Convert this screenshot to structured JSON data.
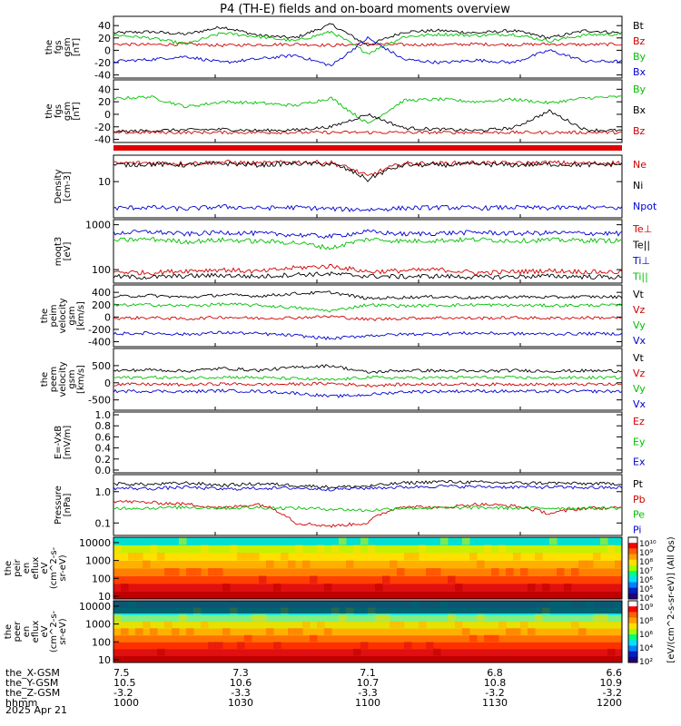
{
  "chart_data": {
    "type": "line",
    "title": "P4 (TH-E) fields and on-board moments overview",
    "panels": [
      {
        "ylabel": [
          "the",
          "fgs",
          "gsm",
          "[nT]"
        ],
        "scale": "linear",
        "ylim": [
          -45,
          55
        ],
        "yticks": [
          "40",
          "20",
          "0",
          "-20",
          "-40"
        ],
        "ytick_values": [
          40,
          20,
          0,
          -20,
          -40
        ],
        "series": [
          {
            "name": "Bt",
            "color": "#000000",
            "values": [
              28,
              30,
              26,
              38,
              24,
              20,
              42,
              8,
              30,
              32,
              28,
              32,
              20,
              32,
              28
            ]
          },
          {
            "name": "Bz",
            "color": "#d00000",
            "values": [
              10,
              9,
              10,
              8,
              9,
              10,
              8,
              10,
              9,
              9,
              10,
              9,
              10,
              9,
              10
            ]
          },
          {
            "name": "By",
            "color": "#00c000",
            "values": [
              25,
              20,
              10,
              28,
              22,
              15,
              30,
              -5,
              22,
              26,
              24,
              26,
              15,
              25,
              26
            ]
          },
          {
            "name": "Bx",
            "color": "#0000d0",
            "values": [
              -18,
              -15,
              -10,
              -20,
              -14,
              -8,
              -25,
              20,
              -15,
              -20,
              -16,
              -20,
              0,
              -18,
              -18
            ]
          }
        ]
      },
      {
        "ylabel": [
          "the",
          "fgs",
          "gsm",
          "[nT]"
        ],
        "scale": "linear",
        "ylim": [
          -45,
          55
        ],
        "yticks": [
          "40",
          "20",
          "0",
          "-20",
          "-40"
        ],
        "ytick_values": [
          40,
          20,
          0,
          -20,
          -40
        ],
        "series": [
          {
            "name": "By",
            "color": "#00c000",
            "values": [
              25,
              28,
              12,
              20,
              18,
              14,
              26,
              -15,
              22,
              24,
              20,
              24,
              18,
              26,
              28
            ]
          },
          {
            "name": "Bx",
            "color": "#000000",
            "values": [
              -28,
              -26,
              -25,
              -24,
              -26,
              -25,
              -20,
              0,
              -22,
              -24,
              -26,
              -22,
              5,
              -25,
              -26
            ]
          },
          {
            "name": "Bz",
            "color": "#d00000",
            "values": [
              -29,
              -29,
              -29,
              -29,
              -29,
              -29,
              -29,
              -29,
              -29,
              -29,
              -29,
              -29,
              -29,
              -29,
              -29
            ]
          }
        ]
      },
      {
        "ylabel": [
          "Density",
          "[cm-3]"
        ],
        "scale": "log",
        "ylim": [
          1.5,
          40
        ],
        "yticks": [
          "10"
        ],
        "ytick_values": [
          10
        ],
        "series": [
          {
            "name": "Ne",
            "color": "#d00000",
            "values": [
              26,
              27,
              26,
              28,
              26,
              28,
              27,
              13,
              26,
              26,
              27,
              26,
              27,
              26,
              27
            ]
          },
          {
            "name": "Ni",
            "color": "#000000",
            "values": [
              24,
              25,
              24,
              26,
              24,
              26,
              25,
              11,
              24,
              24,
              25,
              24,
              25,
              24,
              25
            ]
          },
          {
            "name": "Npot",
            "color": "#0000d0",
            "values": [
              2.5,
              2.6,
              2.4,
              2.7,
              2.5,
              2.6,
              2.4,
              2.3,
              2.5,
              2.6,
              2.5,
              2.6,
              2.5,
              2.6,
              2.5
            ]
          }
        ]
      },
      {
        "ylabel": [
          "moqt3",
          "[eV]"
        ],
        "scale": "log",
        "ylim": [
          50,
          1300
        ],
        "yticks": [
          "1000",
          "100"
        ],
        "ytick_values": [
          1000,
          100
        ],
        "series": [
          {
            "name": "Te⊥",
            "color": "#d00000",
            "values": [
              90,
              85,
              95,
              100,
              90,
              110,
              120,
              90,
              95,
              100,
              85,
              90,
              95,
              90,
              88
            ]
          },
          {
            "name": "Te||",
            "color": "#000000",
            "values": [
              70,
              68,
              72,
              75,
              70,
              78,
              80,
              72,
              70,
              72,
              68,
              70,
              72,
              70,
              68
            ]
          },
          {
            "name": "Ti⊥",
            "color": "#0000d0",
            "values": [
              650,
              700,
              620,
              680,
              640,
              600,
              550,
              700,
              620,
              650,
              680,
              640,
              660,
              650,
              640
            ]
          },
          {
            "name": "Ti||",
            "color": "#00c000",
            "values": [
              450,
              480,
              420,
              460,
              430,
              400,
              300,
              480,
              430,
              450,
              470,
              440,
              460,
              450,
              440
            ]
          }
        ]
      },
      {
        "ylabel": [
          "the",
          "peim",
          "velocity",
          "gsm",
          "[km/s]"
        ],
        "scale": "linear",
        "ylim": [
          -480,
          520
        ],
        "yticks": [
          "400",
          "200",
          "0",
          "-200",
          "-400"
        ],
        "ytick_values": [
          400,
          200,
          0,
          -200,
          -400
        ],
        "series": [
          {
            "name": "Vt",
            "color": "#000000",
            "values": [
              330,
              350,
              320,
              360,
              340,
              380,
              400,
              300,
              320,
              330,
              310,
              330,
              320,
              330,
              325
            ]
          },
          {
            "name": "Vz",
            "color": "#d00000",
            "values": [
              -20,
              -10,
              -30,
              0,
              -20,
              -10,
              10,
              -40,
              -20,
              -10,
              -20,
              -10,
              -20,
              -10,
              -15
            ]
          },
          {
            "name": "Vy",
            "color": "#00c000",
            "values": [
              190,
              200,
              180,
              210,
              190,
              150,
              100,
              200,
              180,
              190,
              200,
              190,
              185,
              190,
              190
            ]
          },
          {
            "name": "Vx",
            "color": "#0000d0",
            "values": [
              -270,
              -260,
              -280,
              -250,
              -270,
              -300,
              -350,
              -300,
              -280,
              -270,
              -260,
              -270,
              -275,
              -270,
              -270
            ]
          }
        ]
      },
      {
        "ylabel": [
          "the",
          "peem",
          "velocity",
          "gsm",
          "[km/s]"
        ],
        "scale": "linear",
        "ylim": [
          -800,
          1000
        ],
        "yticks": [
          "500",
          "0",
          "-500"
        ],
        "ytick_values": [
          500,
          0,
          -500
        ],
        "series": [
          {
            "name": "Vt",
            "color": "#000000",
            "values": [
              350,
              380,
              340,
              420,
              360,
              450,
              500,
              300,
              360,
              350,
              330,
              360,
              340,
              350,
              345
            ]
          },
          {
            "name": "Vz",
            "color": "#d00000",
            "values": [
              -50,
              -40,
              -60,
              -30,
              -50,
              -40,
              -20,
              -80,
              -50,
              -40,
              -50,
              -40,
              -50,
              -45,
              -50
            ]
          },
          {
            "name": "Vy",
            "color": "#00c000",
            "values": [
              150,
              160,
              140,
              170,
              150,
              120,
              80,
              160,
              140,
              150,
              160,
              150,
              145,
              150,
              150
            ]
          },
          {
            "name": "Vx",
            "color": "#0000d0",
            "values": [
              -250,
              -240,
              -260,
              -230,
              -250,
              -300,
              -400,
              -350,
              -260,
              -250,
              -240,
              -250,
              -255,
              -250,
              -250
            ]
          }
        ]
      },
      {
        "ylabel": [
          "E=-VxB",
          "[mV/m]"
        ],
        "scale": "linear",
        "ylim": [
          -0.05,
          1.05
        ],
        "yticks": [
          "1.0",
          "0.8",
          "0.6",
          "0.4",
          "0.2",
          "0.0"
        ],
        "ytick_values": [
          1.0,
          0.8,
          0.6,
          0.4,
          0.2,
          0.0
        ],
        "series": [
          {
            "name": "Ez",
            "color": "#d00000",
            "values": []
          },
          {
            "name": "Ey",
            "color": "#00c000",
            "values": []
          },
          {
            "name": "Ex",
            "color": "#0000d0",
            "values": []
          }
        ]
      },
      {
        "ylabel": [
          "Pressure",
          "[nPa]"
        ],
        "scale": "log",
        "ylim": [
          0.04,
          3.5
        ],
        "yticks": [
          "1.0",
          "0.1"
        ],
        "ytick_values": [
          1.0,
          0.1
        ],
        "series": [
          {
            "name": "Pt",
            "color": "#000000",
            "values": [
              1.8,
              1.7,
              1.9,
              1.6,
              1.8,
              1.6,
              1.4,
              1.5,
              1.9,
              2.1,
              2.0,
              1.9,
              1.9,
              1.8,
              1.8
            ]
          },
          {
            "name": "Pb",
            "color": "#d00000",
            "values": [
              0.5,
              0.45,
              0.4,
              0.3,
              0.4,
              0.1,
              0.08,
              0.1,
              0.35,
              0.3,
              0.4,
              0.35,
              0.2,
              0.3,
              0.3
            ]
          },
          {
            "name": "Pe",
            "color": "#00c000",
            "values": [
              0.3,
              0.3,
              0.32,
              0.3,
              0.31,
              0.3,
              0.28,
              0.25,
              0.3,
              0.3,
              0.31,
              0.3,
              0.3,
              0.3,
              0.3
            ]
          },
          {
            "name": "Pi",
            "color": "#0000d0",
            "values": [
              1.3,
              1.25,
              1.4,
              1.2,
              1.3,
              1.3,
              1.2,
              1.3,
              1.4,
              1.5,
              1.45,
              1.4,
              1.4,
              1.35,
              1.35
            ]
          }
        ]
      }
    ],
    "spectrograms": [
      {
        "ylabel": [
          "the",
          "peir",
          "en",
          "eflux",
          "eV",
          "(cm^2-s-",
          "sr-eV)"
        ],
        "scale": "log",
        "ylim": [
          7,
          20000
        ],
        "yticks": [
          "10000",
          "1000",
          "100",
          "10"
        ],
        "ytick_values": [
          10000,
          1000,
          100,
          10
        ]
      },
      {
        "ylabel": [
          "the",
          "peer",
          "en",
          "eflux",
          "eV",
          "(cm^2-s-",
          "sr-eV)"
        ],
        "scale": "log",
        "ylim": [
          7,
          20000
        ],
        "yticks": [
          "10000",
          "1000",
          "100",
          "10"
        ],
        "ytick_values": [
          10000,
          1000,
          100,
          10
        ]
      }
    ],
    "colorbar": {
      "label": "[eV/(cm^2-s-sr-eV)] (All Qs)",
      "ion_ticks": [
        "10¹⁰",
        "10⁹",
        "10⁸",
        "10⁷",
        "10⁶",
        "10⁵",
        "10⁴"
      ],
      "electron_ticks": [
        "10⁹",
        "10⁸",
        "10⁶",
        "10⁴",
        "10²"
      ]
    },
    "x": {
      "tick_fractions": [
        0,
        0.2,
        0.4,
        0.6,
        0.8,
        1.0
      ],
      "rows": [
        {
          "label": "the_X-GSM",
          "values": [
            "7.5",
            "7.3",
            "7.1",
            "6.8",
            "6.6"
          ],
          "positions": [
            0,
            0.25,
            0.5,
            0.75,
            1.0
          ]
        },
        {
          "label": "the_Y-GSM",
          "values": [
            "10.5",
            "10.6",
            "10.7",
            "10.8",
            "10.9"
          ],
          "positions": [
            0,
            0.25,
            0.5,
            0.75,
            1.0
          ]
        },
        {
          "label": "the_Z-GSM",
          "values": [
            "-3.2",
            "-3.3",
            "-3.3",
            "-3.2",
            "-3.2"
          ],
          "positions": [
            0,
            0.25,
            0.5,
            0.75,
            1.0
          ]
        },
        {
          "label": "hhmm",
          "values": [
            "1000",
            "1030",
            "1100",
            "1130",
            "1200"
          ],
          "positions": [
            0,
            0.25,
            0.5,
            0.75,
            1.0
          ]
        }
      ],
      "date": "2025 Apr 21"
    }
  }
}
